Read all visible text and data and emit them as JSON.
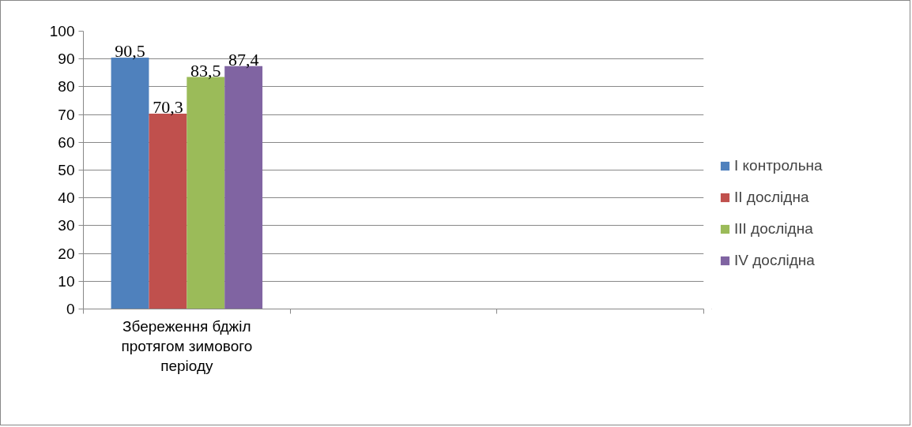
{
  "chart_data": {
    "type": "bar",
    "categories": [
      "Збереження бджіл протягом зимового періоду",
      null,
      null
    ],
    "series": [
      {
        "name": "I контрольна",
        "color": "#4f81bd",
        "values": [
          90.5,
          null,
          null
        ],
        "value_labels": [
          "90,5",
          null,
          null
        ]
      },
      {
        "name": "II дослідна",
        "color": "#c0504d",
        "values": [
          70.3,
          null,
          null
        ],
        "value_labels": [
          "70,3",
          null,
          null
        ]
      },
      {
        "name": "III дослідна",
        "color": "#9bbb59",
        "values": [
          83.5,
          null,
          null
        ],
        "value_labels": [
          "83,5",
          null,
          null
        ]
      },
      {
        "name": "IV дослідна",
        "color": "#8064a2",
        "values": [
          87.4,
          null,
          null
        ],
        "value_labels": [
          "87,4",
          null,
          null
        ]
      }
    ],
    "ylim": [
      0,
      100
    ],
    "yticks": [
      0,
      10,
      20,
      30,
      40,
      50,
      60,
      70,
      80,
      90,
      100
    ],
    "grid": "y",
    "legend": "right"
  }
}
